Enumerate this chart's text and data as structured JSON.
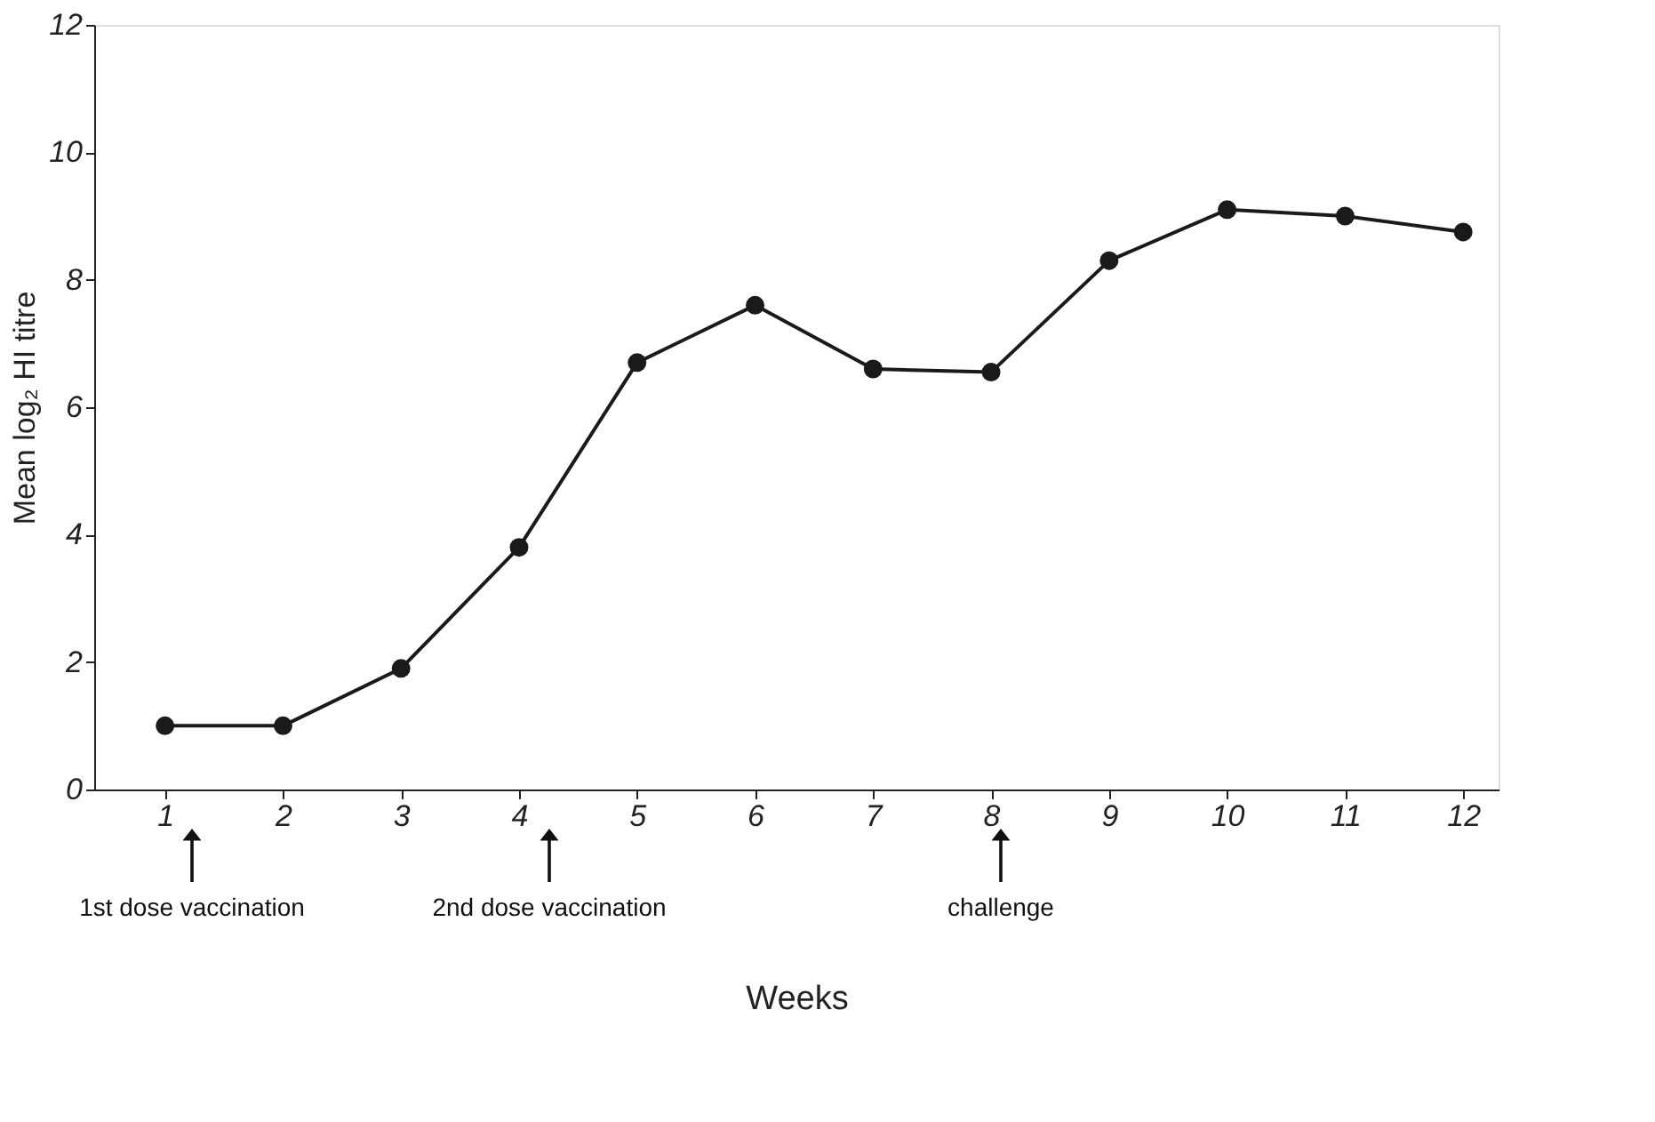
{
  "chart_data": {
    "type": "line",
    "xlabel": "Weeks",
    "ylabel": "Mean log₂ HI titre",
    "x": [
      1,
      2,
      3,
      4,
      5,
      6,
      7,
      8,
      9,
      10,
      11,
      12
    ],
    "series": [
      {
        "color": "#1a1a1a",
        "values": [
          1.0,
          1.0,
          1.9,
          3.8,
          6.7,
          7.6,
          6.6,
          6.55,
          8.3,
          9.1,
          9.0,
          8.75
        ]
      }
    ],
    "xlim": [
      0.4,
      12.3
    ],
    "xticks": [
      1,
      2,
      3,
      4,
      5,
      6,
      7,
      8,
      9,
      10,
      11,
      12
    ],
    "ylim": [
      0,
      12
    ],
    "yticks": [
      0,
      2,
      4,
      6,
      8,
      10,
      12
    ],
    "grid": false,
    "marker": "circle",
    "line_style": "solid",
    "annotations": [
      "1st dose vaccination",
      "2nd dose vaccination",
      "challenge"
    ]
  }
}
